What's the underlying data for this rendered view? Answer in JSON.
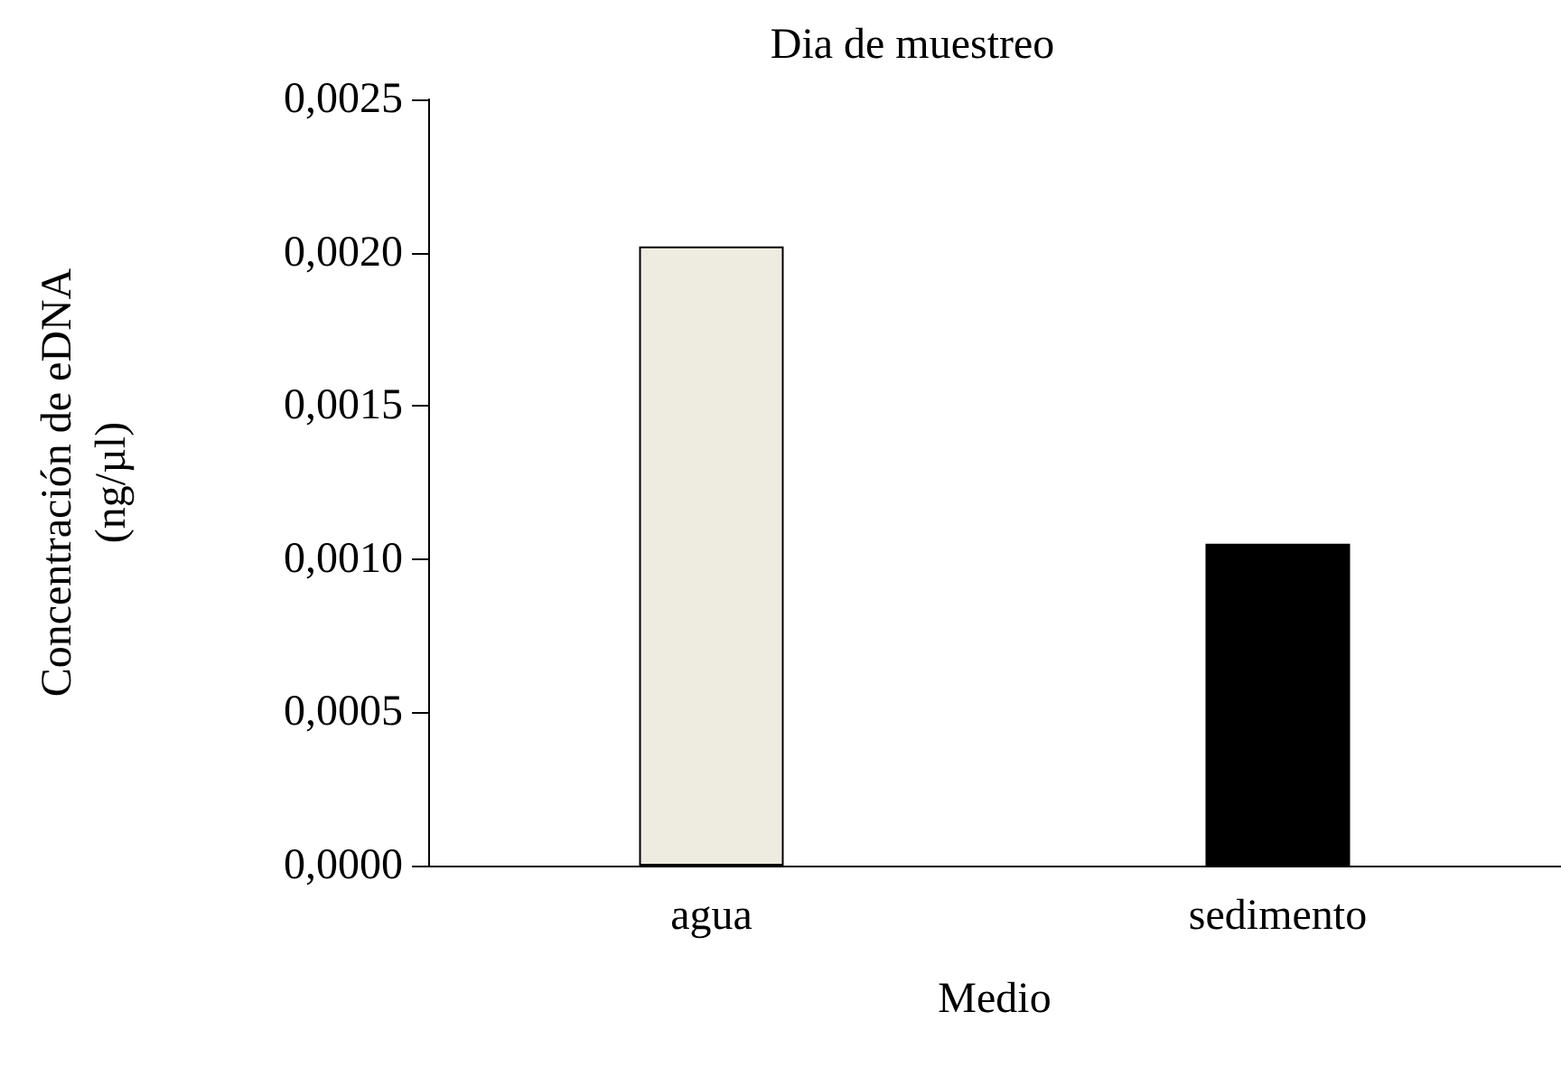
{
  "chart_data": {
    "type": "bar",
    "title": "Dia de muestreo",
    "xlabel": "Medio",
    "ylabel": "Concentración de eDNA\n(ng/µl)",
    "categories": [
      "agua",
      "sedimento"
    ],
    "values": [
      0.00202,
      0.00105
    ],
    "colors": [
      "#eeebe0",
      "#000000"
    ],
    "ylim": [
      0,
      0.0025
    ],
    "yticks": [
      {
        "value": 0,
        "label": "0,0000"
      },
      {
        "value": 0.0005,
        "label": "0,0005"
      },
      {
        "value": 0.001,
        "label": "0,0010"
      },
      {
        "value": 0.0015,
        "label": "0,0015"
      },
      {
        "value": 0.002,
        "label": "0,0020"
      },
      {
        "value": 0.0025,
        "label": "0,0025"
      }
    ],
    "grid": false
  }
}
